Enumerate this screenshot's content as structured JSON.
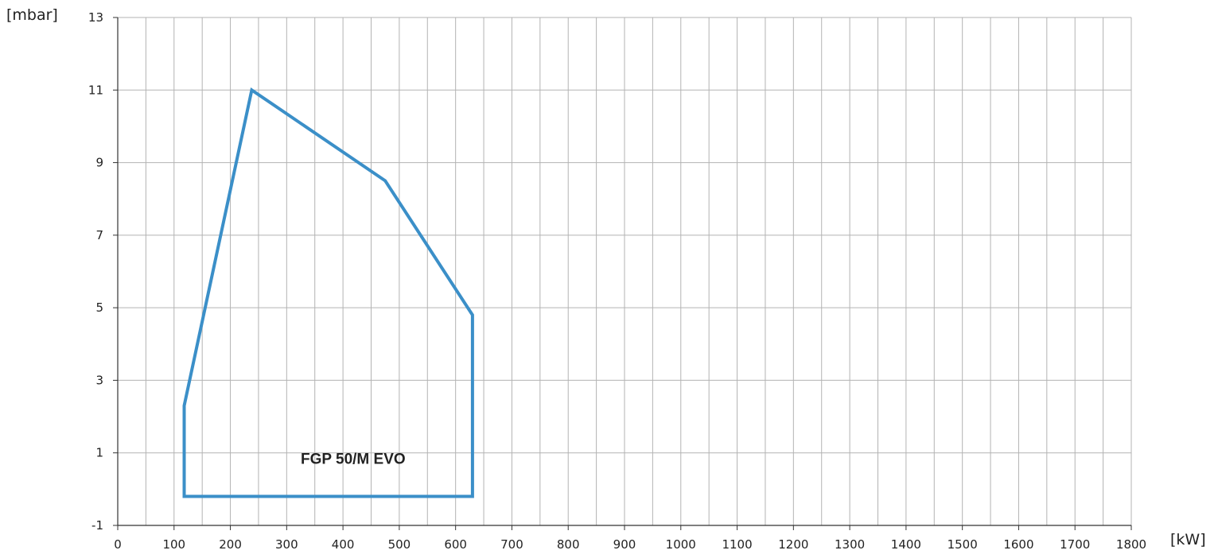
{
  "chart_data": {
    "type": "area",
    "ylabel": "[mbar]",
    "xlabel": "[kW]",
    "xlim": [
      0,
      1800
    ],
    "ylim": [
      -1,
      13
    ],
    "x_ticks": [
      0,
      100,
      200,
      300,
      400,
      500,
      600,
      700,
      800,
      900,
      1000,
      1100,
      1200,
      1300,
      1400,
      1500,
      1600,
      1700,
      1800
    ],
    "x_minor_step": 50,
    "y_ticks": [
      -1,
      1,
      3,
      5,
      7,
      9,
      11,
      13
    ],
    "grid": true,
    "series": [
      {
        "name": "FGP 50/M EVO",
        "color": "#3b8fc8",
        "points": [
          {
            "x": 118,
            "y": -0.2
          },
          {
            "x": 118,
            "y": 2.3
          },
          {
            "x": 238,
            "y": 11.0
          },
          {
            "x": 475,
            "y": 8.5
          },
          {
            "x": 630,
            "y": 4.8
          },
          {
            "x": 630,
            "y": -0.2
          }
        ]
      }
    ],
    "annotations": [
      {
        "text": "FGP 50/M EVO",
        "x": 325,
        "y": 0.7
      }
    ],
    "colors": {
      "grid": "#b3b3b3",
      "axis": "#333333",
      "text": "#222222"
    }
  }
}
